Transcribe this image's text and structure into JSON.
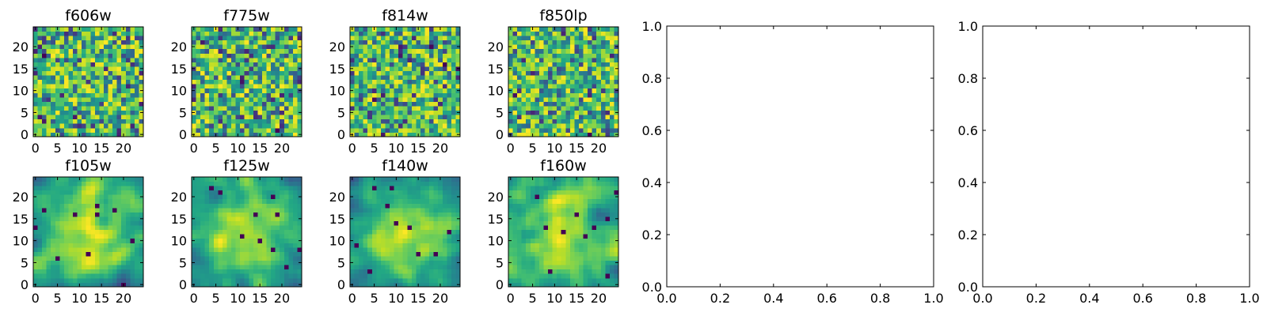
{
  "chart_data": [
    {
      "type": "heatmap",
      "title": "f606w",
      "x_ticks": [
        "0",
        "5",
        "10",
        "15",
        "20"
      ],
      "y_ticks": [
        "0",
        "5",
        "10",
        "15",
        "20"
      ],
      "xlim": [
        -0.5,
        24.5
      ],
      "ylim": [
        -0.5,
        24.5
      ],
      "grid_size": [
        25,
        25
      ],
      "colormap": "viridis",
      "texture": "fine-grained noise",
      "origin": "lower"
    },
    {
      "type": "heatmap",
      "title": "f775w",
      "x_ticks": [
        "0",
        "5",
        "10",
        "15",
        "20"
      ],
      "y_ticks": [
        "0",
        "5",
        "10",
        "15",
        "20"
      ],
      "xlim": [
        -0.5,
        24.5
      ],
      "ylim": [
        -0.5,
        24.5
      ],
      "grid_size": [
        25,
        25
      ],
      "colormap": "viridis",
      "texture": "fine-grained noise",
      "origin": "lower"
    },
    {
      "type": "heatmap",
      "title": "f814w",
      "x_ticks": [
        "0",
        "5",
        "10",
        "15",
        "20"
      ],
      "y_ticks": [
        "0",
        "5",
        "10",
        "15",
        "20"
      ],
      "xlim": [
        -0.5,
        24.5
      ],
      "ylim": [
        -0.5,
        24.5
      ],
      "grid_size": [
        25,
        25
      ],
      "colormap": "viridis",
      "texture": "fine-grained noise",
      "origin": "lower"
    },
    {
      "type": "heatmap",
      "title": "f850lp",
      "x_ticks": [
        "0",
        "5",
        "10",
        "15",
        "20"
      ],
      "y_ticks": [
        "0",
        "5",
        "10",
        "15",
        "20"
      ],
      "xlim": [
        -0.5,
        24.5
      ],
      "ylim": [
        -0.5,
        24.5
      ],
      "grid_size": [
        25,
        25
      ],
      "colormap": "viridis",
      "texture": "fine-grained noise",
      "origin": "lower"
    },
    {
      "type": "heatmap",
      "title": "f105w",
      "x_ticks": [
        "0",
        "5",
        "10",
        "15",
        "20"
      ],
      "y_ticks": [
        "0",
        "5",
        "10",
        "15",
        "20"
      ],
      "xlim": [
        -0.5,
        24.5
      ],
      "ylim": [
        -0.5,
        24.5
      ],
      "grid_size": [
        25,
        25
      ],
      "colormap": "viridis",
      "texture": "smooth blobs",
      "origin": "lower"
    },
    {
      "type": "heatmap",
      "title": "f125w",
      "x_ticks": [
        "0",
        "5",
        "10",
        "15",
        "20"
      ],
      "y_ticks": [
        "0",
        "5",
        "10",
        "15",
        "20"
      ],
      "xlim": [
        -0.5,
        24.5
      ],
      "ylim": [
        -0.5,
        24.5
      ],
      "grid_size": [
        25,
        25
      ],
      "colormap": "viridis",
      "texture": "smooth blobs",
      "origin": "lower"
    },
    {
      "type": "heatmap",
      "title": "f140w",
      "x_ticks": [
        "0",
        "5",
        "10",
        "15",
        "20"
      ],
      "y_ticks": [
        "0",
        "5",
        "10",
        "15",
        "20"
      ],
      "xlim": [
        -0.5,
        24.5
      ],
      "ylim": [
        -0.5,
        24.5
      ],
      "grid_size": [
        25,
        25
      ],
      "colormap": "viridis",
      "texture": "smooth blobs",
      "origin": "lower"
    },
    {
      "type": "heatmap",
      "title": "f160w",
      "x_ticks": [
        "0",
        "5",
        "10",
        "15",
        "20"
      ],
      "y_ticks": [
        "0",
        "5",
        "10",
        "15",
        "20"
      ],
      "xlim": [
        -0.5,
        24.5
      ],
      "ylim": [
        -0.5,
        24.5
      ],
      "grid_size": [
        25,
        25
      ],
      "colormap": "viridis",
      "texture": "smooth blobs",
      "origin": "lower"
    },
    {
      "type": "line",
      "title": "",
      "series": [],
      "x_ticks": [
        "0.0",
        "0.2",
        "0.4",
        "0.6",
        "0.8",
        "1.0"
      ],
      "y_ticks": [
        "0.0",
        "0.2",
        "0.4",
        "0.6",
        "0.8",
        "1.0"
      ],
      "xlim": [
        0,
        1
      ],
      "ylim": [
        0,
        1
      ]
    },
    {
      "type": "line",
      "title": "",
      "series": [],
      "x_ticks": [
        "0.0",
        "0.2",
        "0.4",
        "0.6",
        "0.8",
        "1.0"
      ],
      "y_ticks": [
        "0.0",
        "0.2",
        "0.4",
        "0.6",
        "0.8",
        "1.0"
      ],
      "xlim": [
        0,
        1
      ],
      "ylim": [
        0,
        1
      ]
    }
  ]
}
